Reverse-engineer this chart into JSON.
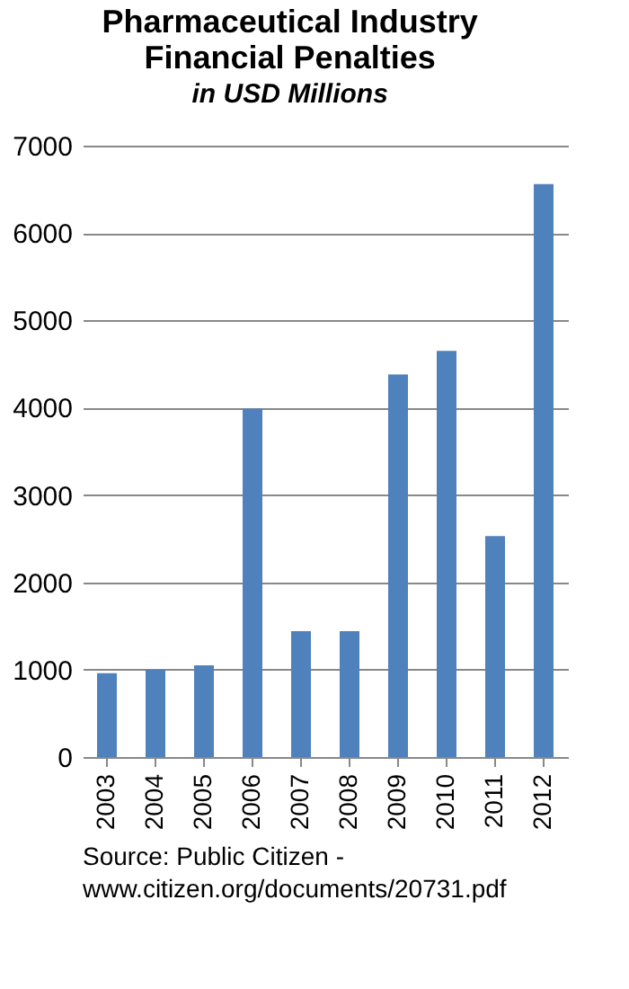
{
  "chart_data": {
    "type": "bar",
    "title": "Pharmaceutical Industry Financial Penalties",
    "subtitle": "in USD Millions",
    "categories": [
      "2003",
      "2004",
      "2005",
      "2006",
      "2007",
      "2008",
      "2009",
      "2010",
      "2011",
      "2012"
    ],
    "values": [
      960,
      1000,
      1050,
      3990,
      1440,
      1440,
      4380,
      4650,
      2530,
      6560
    ],
    "color": "#4f81bd",
    "ylim": [
      0,
      7000
    ],
    "yticks": [
      0,
      1000,
      2000,
      3000,
      4000,
      5000,
      6000,
      7000
    ],
    "grid": "y",
    "annotations": [
      "Source: Public Citizen -",
      "www.citizen.org/documents/20731.pdf"
    ]
  }
}
